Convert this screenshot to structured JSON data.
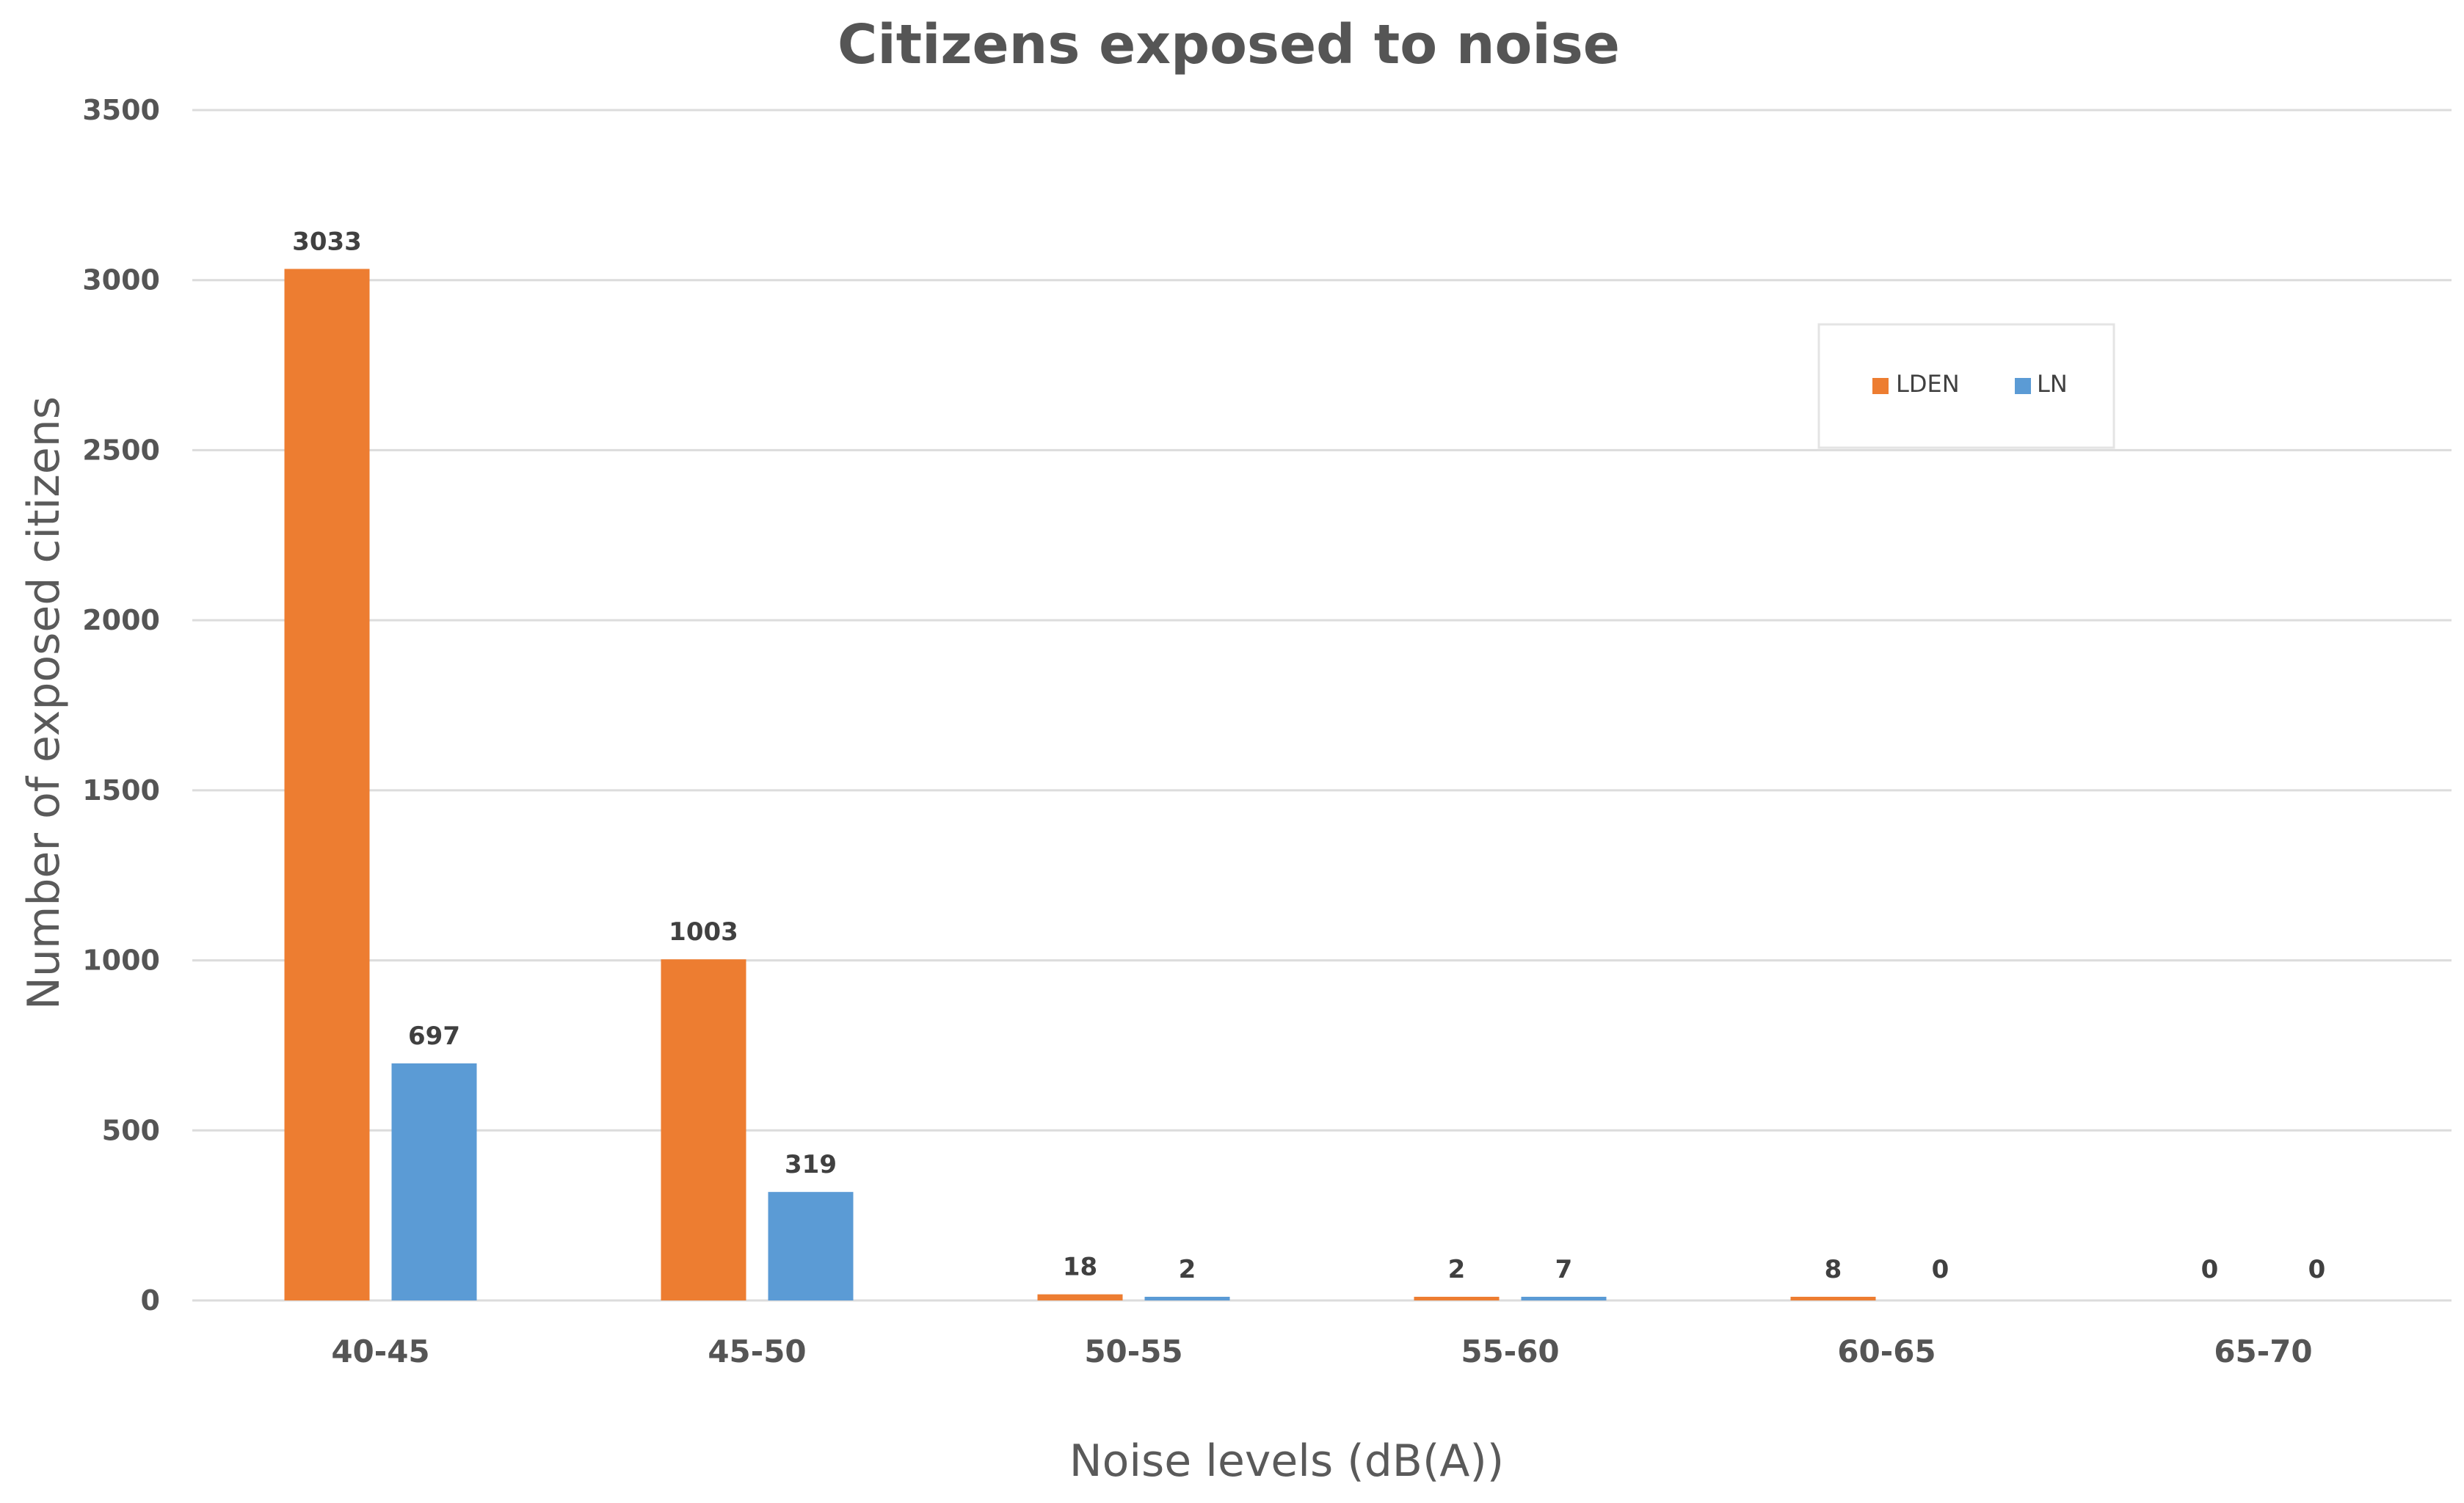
{
  "chart_data": {
    "type": "bar",
    "title": "Citizens exposed to noise",
    "xlabel": "Noise levels (dB(A))",
    "ylabel": "Number of exposed citizens",
    "categories": [
      "40-45",
      "45-50",
      "50-55",
      "55-60",
      "60-65",
      "65-70"
    ],
    "series": [
      {
        "name": "LDEN",
        "color": "#ED7D31",
        "values": [
          3033,
          1003,
          18,
          2,
          8,
          0
        ]
      },
      {
        "name": "LN",
        "color": "#5B9BD5",
        "values": [
          697,
          319,
          2,
          7,
          0,
          0
        ]
      }
    ],
    "ylim": [
      0,
      3500
    ],
    "yticks": [
      0,
      500,
      1000,
      1500,
      2000,
      2500,
      3000,
      3500
    ],
    "grid": true,
    "legend_position": "top-right"
  }
}
